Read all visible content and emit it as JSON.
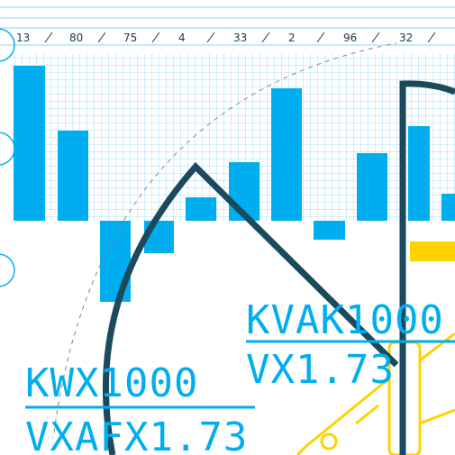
{
  "labels": [
    "13",
    "80",
    "75",
    "4",
    "33",
    "2",
    "96",
    "32"
  ],
  "left_block": {
    "line1": "KWX1000",
    "line2": "VXAFX1.73"
  },
  "right_block": {
    "line1": "KVAK1000",
    "line2": "VX1.73"
  }
}
